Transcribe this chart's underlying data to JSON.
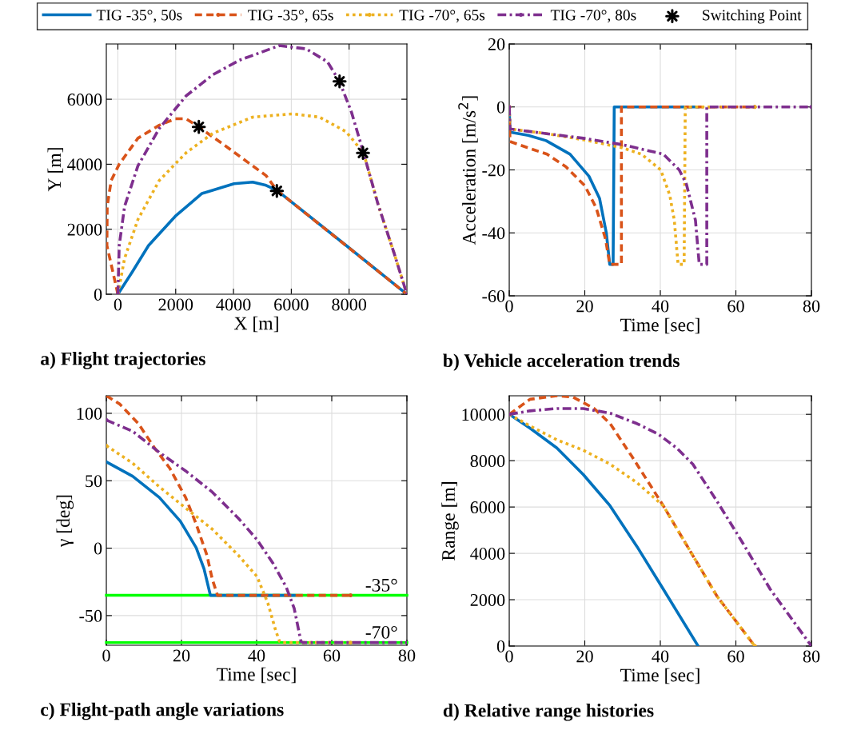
{
  "chart_data": [
    {
      "type": "line",
      "title": "a) Flight trajectories",
      "xlabel": "X [m]",
      "ylabel": "Y [m]",
      "xlim": [
        -400,
        10000
      ],
      "ylim": [
        0,
        7700
      ],
      "xticks": [
        0,
        2000,
        4000,
        6000,
        8000
      ],
      "yticks": [
        0,
        2000,
        4000,
        6000
      ],
      "grid": true,
      "legend": "top",
      "series": [
        {
          "name": "TIG -35°, 50s",
          "color": "#0072bd",
          "line_style": "solid",
          "x": [
            0,
            508,
            1062,
            1986,
            2910,
            4018,
            4665,
            5127,
            5497,
            7898,
            10000
          ],
          "values": [
            0,
            700,
            1500,
            2400,
            3100,
            3400,
            3450,
            3350,
            3200,
            1500,
            0
          ]
        },
        {
          "name": "TIG -35°, 65s",
          "color": "#d95319",
          "line_style": "dashed",
          "x": [
            0,
            -380,
            -370,
            -231,
            46,
            693,
            1432,
            1986,
            2356,
            2800,
            3741,
            5127,
            5497,
            10000
          ],
          "values": [
            0,
            1500,
            2700,
            3500,
            4000,
            4800,
            5200,
            5400,
            5400,
            5150,
            4550,
            3650,
            3200,
            0
          ]
        },
        {
          "name": "TIG -70°, 65s",
          "color": "#edb120",
          "line_style": "dotted",
          "x": [
            0,
            231,
            693,
            1432,
            2356,
            3279,
            4665,
            6051,
            6975,
            7898,
            8499,
            9007,
            9561,
            10000
          ],
          "values": [
            0,
            1100,
            2300,
            3500,
            4350,
            4950,
            5450,
            5550,
            5450,
            5000,
            4350,
            2750,
            1250,
            0
          ]
        },
        {
          "name": "TIG -70°, 80s",
          "color": "#7e2f8e",
          "line_style": "dashdot",
          "x": [
            0,
            46,
            231,
            693,
            1432,
            2356,
            3279,
            4203,
            5589,
            6513,
            7252,
            7667,
            8083,
            8499,
            9007,
            9561,
            10000
          ],
          "values": [
            0,
            1500,
            2700,
            3950,
            5100,
            6100,
            6750,
            7200,
            7650,
            7550,
            7150,
            6550,
            5600,
            4350,
            2750,
            1250,
            0
          ]
        },
        {
          "name": "Switching Point",
          "type": "scatter",
          "marker": "star",
          "color": "#000000",
          "x": [
            2800,
            5500,
            7670,
            8480
          ],
          "values": [
            5150,
            3180,
            6550,
            4350
          ]
        }
      ]
    },
    {
      "type": "line",
      "title": "b) Vehicle acceleration trends",
      "xlabel": "Time [sec]",
      "ylabel": "Acceleration [m/s$^{2}$]",
      "xlim": [
        0,
        80
      ],
      "ylim": [
        -60,
        20
      ],
      "xticks": [
        0,
        20,
        40,
        60,
        80
      ],
      "yticks": [
        -60,
        -40,
        -20,
        0,
        20
      ],
      "grid": true,
      "series": [
        {
          "color": "#0072bd",
          "line_style": "solid",
          "x": [
            0,
            0.2,
            5,
            9.75,
            16.1,
            21.1,
            23.9,
            25.7,
            26.6,
            27.5,
            27.8,
            50
          ],
          "values": [
            0,
            -8,
            -9,
            -10.7,
            -15,
            -22,
            -29,
            -40,
            -50,
            -50,
            0,
            0
          ]
        },
        {
          "color": "#d95319",
          "line_style": "dashed",
          "x": [
            0,
            0.2,
            5,
            10,
            15,
            20,
            23,
            25.5,
            26.6,
            29.7,
            29.7,
            65
          ],
          "values": [
            0,
            -11,
            -13,
            -15,
            -19,
            -25,
            -32,
            -42,
            -50,
            -50,
            0,
            0
          ]
        },
        {
          "color": "#edb120",
          "line_style": "dotted",
          "x": [
            0,
            0.2,
            10,
            20,
            30,
            35,
            40.1,
            42.5,
            43.7,
            44.7,
            46.3,
            46.6,
            65
          ],
          "values": [
            0,
            -7,
            -8.5,
            -10.5,
            -13,
            -15,
            -20,
            -28,
            -36,
            -50,
            -50,
            0,
            0
          ]
        },
        {
          "color": "#7e2f8e",
          "line_style": "dashdot",
          "x": [
            0,
            0.2,
            10,
            20,
            30,
            40.8,
            45,
            46.9,
            49.3,
            50.3,
            52.3,
            52.3,
            80
          ],
          "values": [
            0,
            -7,
            -8.5,
            -10,
            -12,
            -15,
            -20,
            -24.5,
            -36,
            -50,
            -50,
            0,
            0
          ]
        }
      ]
    },
    {
      "type": "line",
      "title": "c) Flight-path angle variations",
      "xlabel": "Time [sec]",
      "ylabel": "γ [deg]",
      "xlim": [
        0,
        80
      ],
      "ylim": [
        -72,
        113
      ],
      "xticks": [
        0,
        20,
        40,
        60,
        80
      ],
      "yticks": [
        -50,
        0,
        50,
        100
      ],
      "grid": true,
      "ref_lines": [
        {
          "axis": "y",
          "value": -35,
          "label": "-35°",
          "color": "#00ff00"
        },
        {
          "axis": "y",
          "value": -70,
          "label": "-70°",
          "color": "#00ff00"
        }
      ],
      "series": [
        {
          "color": "#0072bd",
          "line_style": "solid",
          "x": [
            0,
            7,
            14.1,
            19.7,
            23.9,
            26,
            27.7,
            50
          ],
          "values": [
            64,
            53.3,
            37.6,
            20,
            0.4,
            -15.3,
            -35,
            -35
          ]
        },
        {
          "color": "#d95319",
          "line_style": "dashed",
          "x": [
            0,
            3.5,
            8.5,
            12.7,
            16.9,
            21.1,
            23.9,
            26.8,
            28.2,
            29.6,
            65
          ],
          "values": [
            113,
            107,
            92.5,
            74.9,
            59.2,
            37.6,
            18,
            -5.5,
            -23,
            -35,
            -35
          ]
        },
        {
          "color": "#edb120",
          "line_style": "dotted",
          "x": [
            0,
            7,
            14.1,
            21.1,
            28.2,
            35.2,
            40.1,
            43,
            45,
            46.1,
            46.5,
            65
          ],
          "values": [
            76,
            63,
            45.5,
            29.8,
            14.1,
            -5.5,
            -21,
            -40.8,
            -60.4,
            -69.2,
            -70,
            -70
          ]
        },
        {
          "color": "#7e2f8e",
          "line_style": "dashdot",
          "x": [
            0,
            7,
            14.1,
            21.1,
            28.2,
            35.2,
            40.1,
            44.4,
            47.9,
            50,
            51.8,
            52.3,
            80
          ],
          "values": [
            95,
            86.7,
            71,
            57.3,
            41.6,
            22,
            6.3,
            -11.4,
            -29,
            -44.7,
            -69.2,
            -70,
            -70
          ]
        }
      ]
    },
    {
      "type": "line",
      "title": "d) Relative range histories",
      "xlabel": "Time [sec]",
      "ylabel": "Range [m]",
      "xlim": [
        0,
        80
      ],
      "ylim": [
        0,
        10800
      ],
      "xticks": [
        0,
        20,
        40,
        60,
        80
      ],
      "yticks": [
        0,
        2000,
        4000,
        6000,
        8000,
        10000
      ],
      "grid": true,
      "series": [
        {
          "color": "#0072bd",
          "line_style": "solid",
          "x": [
            0,
            5.5,
            12.6,
            19.6,
            26.7,
            33.8,
            40.8,
            50
          ],
          "values": [
            10000,
            9400,
            8550,
            7400,
            6050,
            4300,
            2450,
            0
          ]
        },
        {
          "color": "#d95319",
          "line_style": "dashed",
          "x": [
            0,
            5.5,
            12.6,
            16.8,
            22.5,
            26.7,
            32.4,
            37.3,
            40.8,
            47.9,
            55,
            65
          ],
          "values": [
            10000,
            10650,
            10800,
            10750,
            10250,
            9600,
            8200,
            6950,
            6050,
            4100,
            2150,
            0
          ]
        },
        {
          "color": "#edb120",
          "line_style": "dotted",
          "x": [
            0,
            5.5,
            12.6,
            19.6,
            26.7,
            33.8,
            40.8,
            47.9,
            55,
            65
          ],
          "values": [
            10000,
            9500,
            8900,
            8450,
            7850,
            7050,
            6050,
            4100,
            2150,
            0
          ]
        },
        {
          "color": "#7e2f8e",
          "line_style": "dashdot",
          "x": [
            0,
            5.5,
            12.6,
            19.6,
            26.7,
            33.8,
            39.4,
            44.3,
            48.6,
            55,
            62,
            69.1,
            80
          ],
          "values": [
            10000,
            10150,
            10250,
            10250,
            10050,
            9600,
            9150,
            8550,
            7850,
            6250,
            4400,
            2450,
            0
          ]
        }
      ]
    }
  ]
}
